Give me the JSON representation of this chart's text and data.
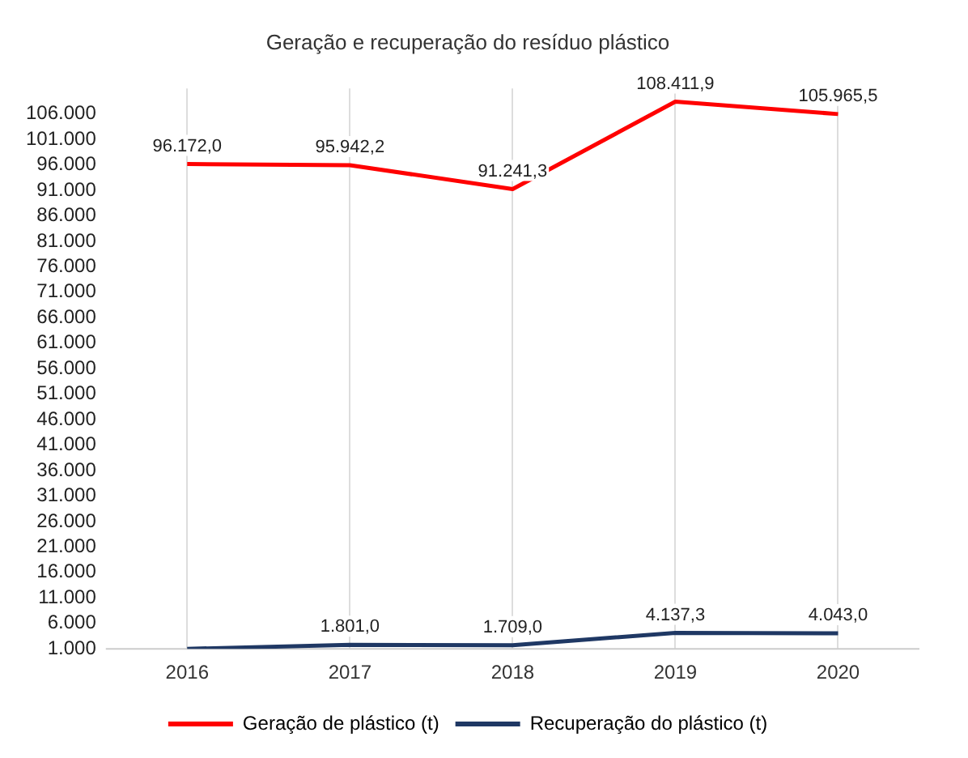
{
  "chart_data": {
    "type": "line",
    "title": "Geração e recuperação do resíduo plástico",
    "categories": [
      "2016",
      "2017",
      "2018",
      "2019",
      "2020"
    ],
    "series": [
      {
        "name": "Geração de plástico (t)",
        "color": "#ff0000",
        "values": [
          96172.0,
          95942.2,
          91241.3,
          108411.9,
          105965.5
        ],
        "value_labels": [
          "96.172,0",
          "95.942,2",
          "91.241,3",
          "108.411,9",
          "105.965,5"
        ]
      },
      {
        "name": "Recuperação do plástico (t)",
        "color": "#1f3864",
        "values": [
          1000,
          1801.0,
          1709.0,
          4137.3,
          4043.0
        ],
        "value_labels": [
          null,
          "1.801,0",
          "1.709,0",
          "4.137,3",
          "4.043,0"
        ]
      }
    ],
    "ylim": [
      1000,
      111000
    ],
    "yticks": [
      {
        "value": 1000,
        "label": "1.000"
      },
      {
        "value": 6000,
        "label": "6.000"
      },
      {
        "value": 11000,
        "label": "11.000"
      },
      {
        "value": 16000,
        "label": "16.000"
      },
      {
        "value": 21000,
        "label": "21.000"
      },
      {
        "value": 26000,
        "label": "26.000"
      },
      {
        "value": 31000,
        "label": "31.000"
      },
      {
        "value": 36000,
        "label": "36.000"
      },
      {
        "value": 41000,
        "label": "41.000"
      },
      {
        "value": 46000,
        "label": "46.000"
      },
      {
        "value": 51000,
        "label": "51.000"
      },
      {
        "value": 56000,
        "label": "56.000"
      },
      {
        "value": 61000,
        "label": "61.000"
      },
      {
        "value": 66000,
        "label": "66.000"
      },
      {
        "value": 71000,
        "label": "71.000"
      },
      {
        "value": 76000,
        "label": "76.000"
      },
      {
        "value": 81000,
        "label": "81.000"
      },
      {
        "value": 86000,
        "label": "86.000"
      },
      {
        "value": 91000,
        "label": "91.000"
      },
      {
        "value": 96000,
        "label": "96.000"
      },
      {
        "value": 101000,
        "label": "101.000"
      },
      {
        "value": 106000,
        "label": "106.000"
      }
    ],
    "grid": "x",
    "legend": "bottom",
    "marker": "none",
    "line_style": "solid"
  }
}
